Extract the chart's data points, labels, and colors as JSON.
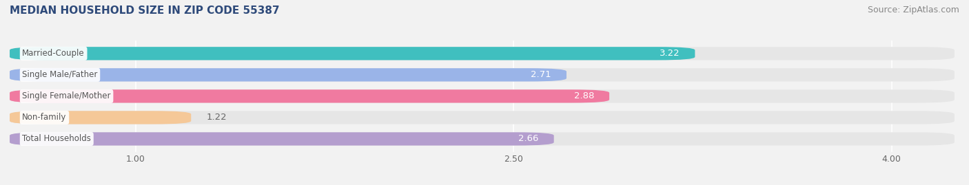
{
  "title": "MEDIAN HOUSEHOLD SIZE IN ZIP CODE 55387",
  "source": "Source: ZipAtlas.com",
  "categories": [
    "Married-Couple",
    "Single Male/Father",
    "Single Female/Mother",
    "Non-family",
    "Total Households"
  ],
  "values": [
    3.22,
    2.71,
    2.88,
    1.22,
    2.66
  ],
  "bar_colors": [
    "#40bfbf",
    "#9ab4e8",
    "#f07aa0",
    "#f5c898",
    "#b49ece"
  ],
  "background_color": "#f2f2f2",
  "bar_background_color": "#e6e6e6",
  "xlim": [
    0.5,
    4.25
  ],
  "xticks": [
    1.0,
    2.5,
    4.0
  ],
  "title_color": "#2e4a7a",
  "source_color": "#888888",
  "label_color_inside": "#ffffff",
  "label_color_outside": "#666666",
  "title_fontsize": 11,
  "source_fontsize": 9,
  "bar_label_fontsize": 9.5,
  "category_fontsize": 8.5,
  "tick_fontsize": 9,
  "bar_height": 0.62,
  "value_threshold": 2.0
}
